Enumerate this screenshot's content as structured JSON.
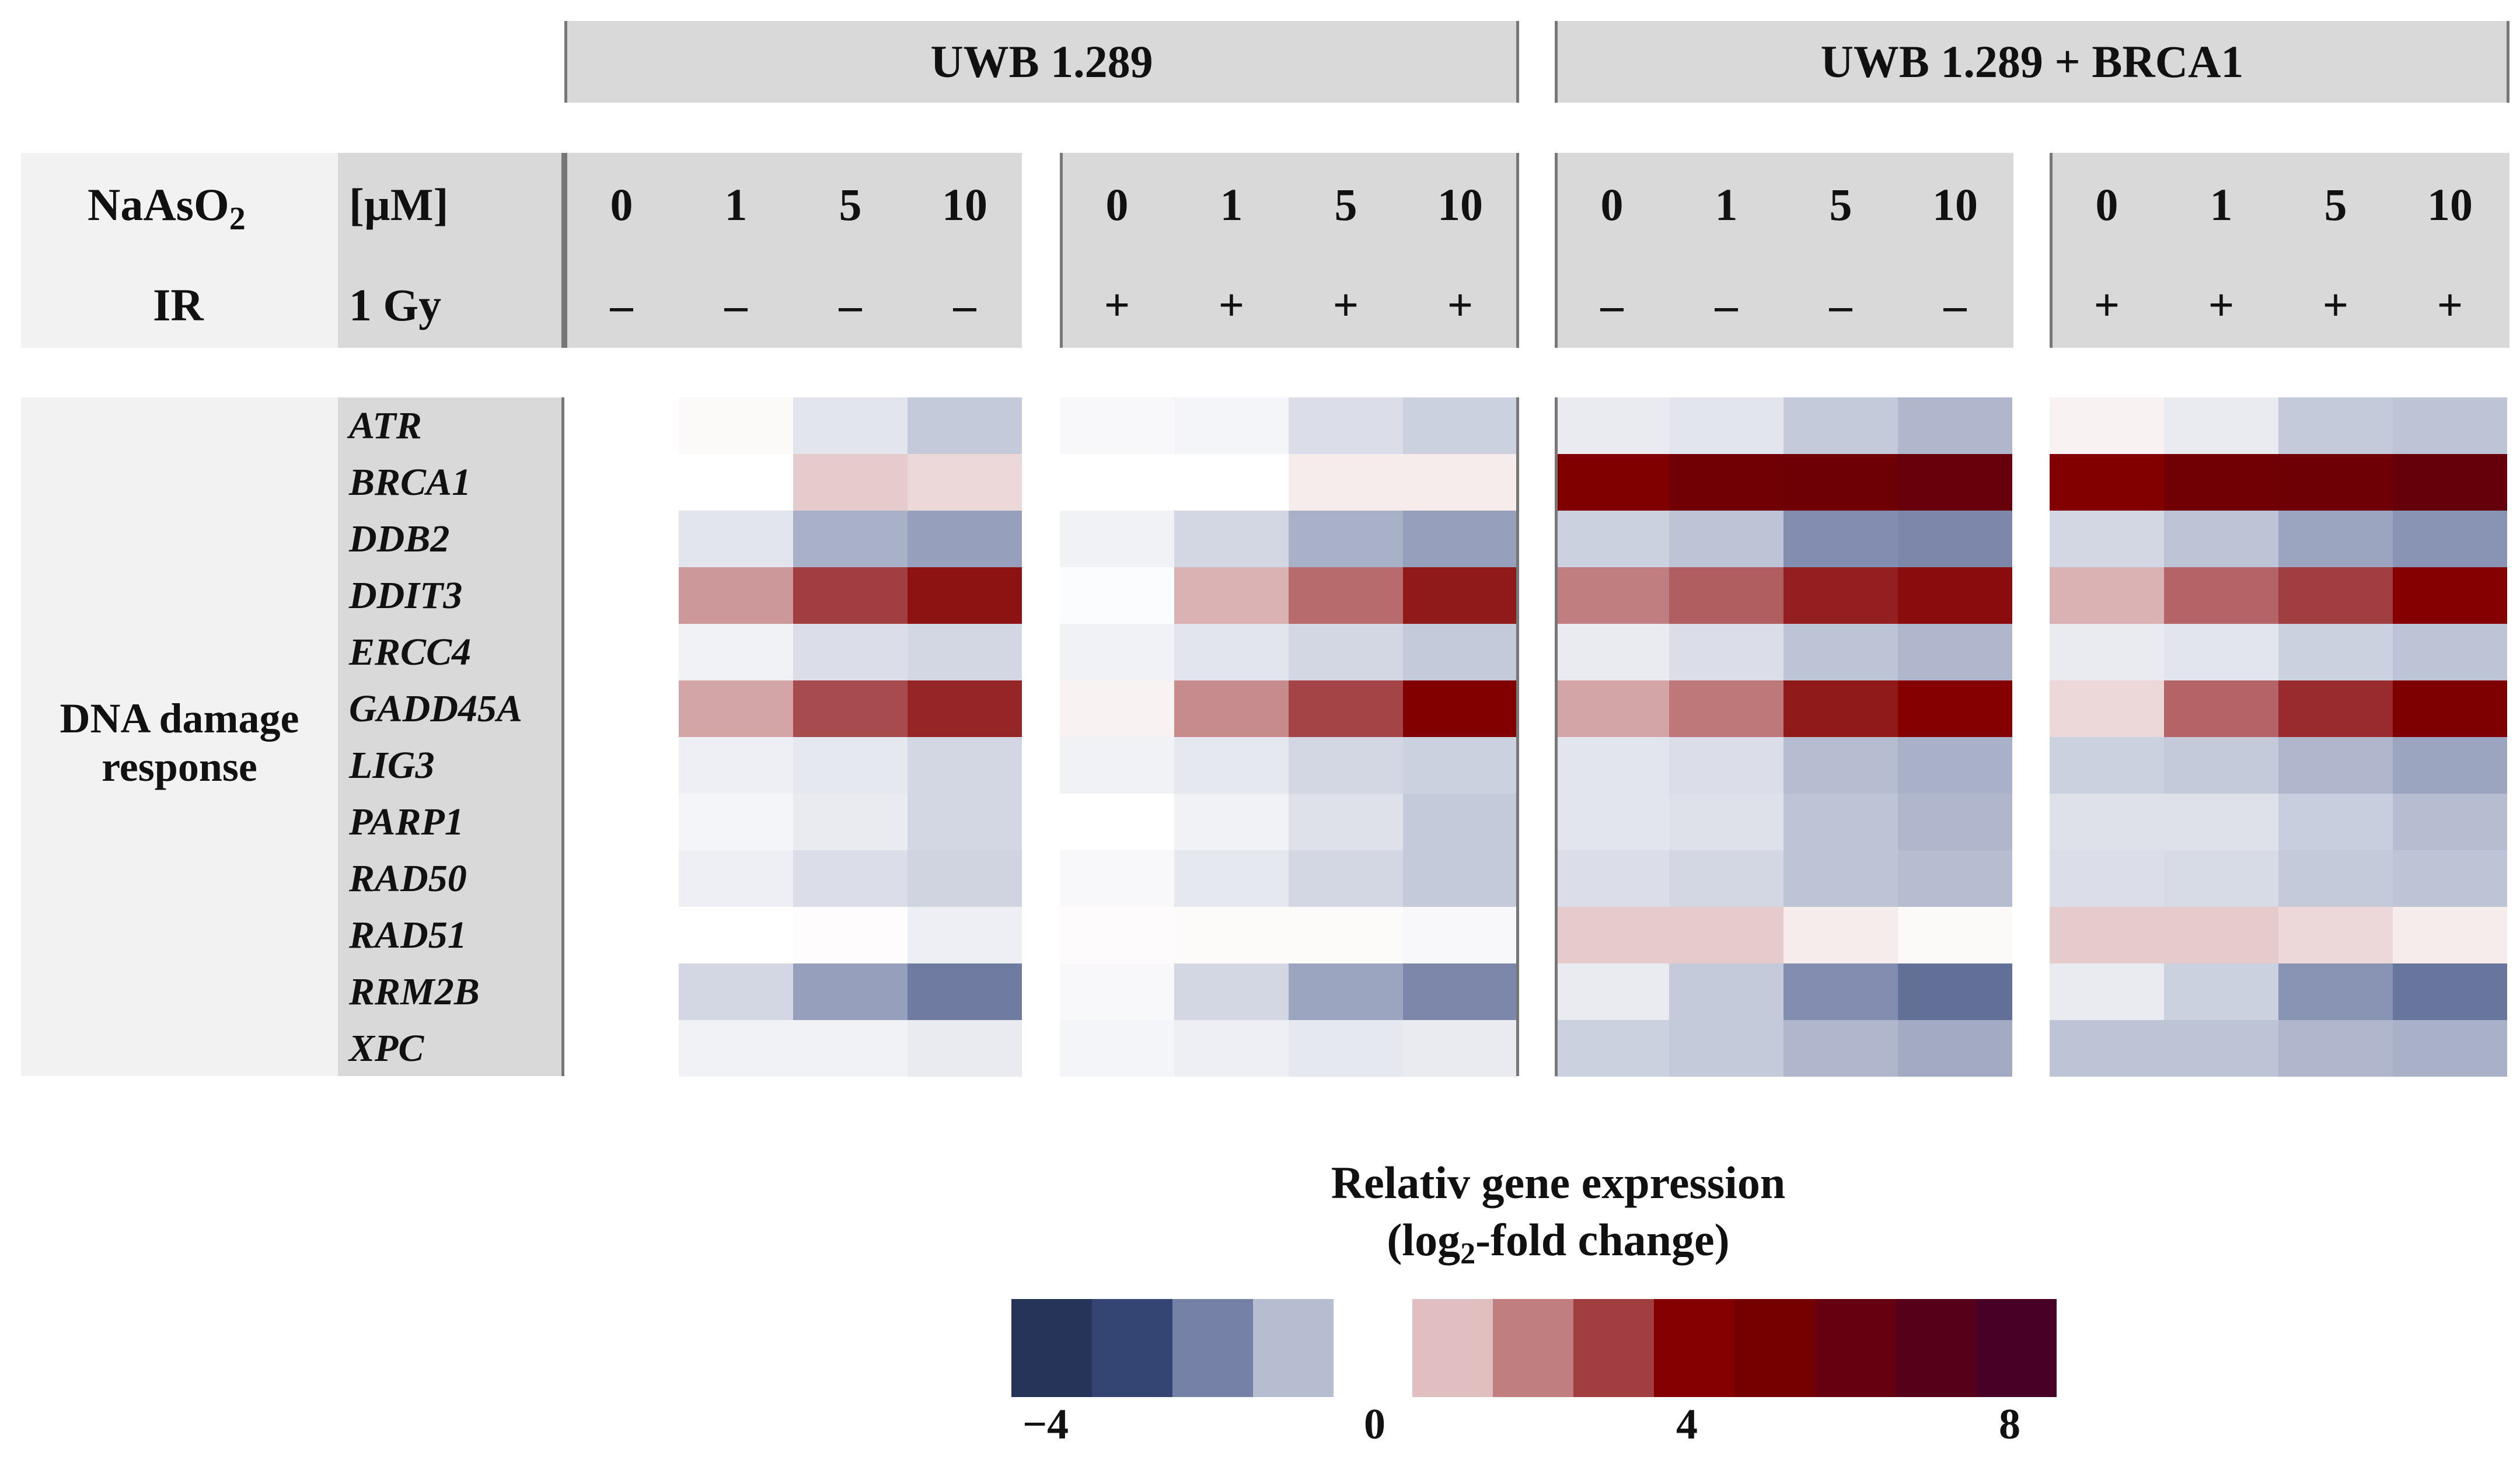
{
  "groups": [
    "UWB 1.289",
    "UWB 1.289 + BRCA1"
  ],
  "header": {
    "treatment_label": "NaAsO",
    "treatment_sub": "2",
    "treatment_unit": "[µM]",
    "ir_label": "IR",
    "ir_unit": "1 Gy",
    "doses": [
      "0",
      "1",
      "5",
      "10"
    ],
    "ir_signs": [
      "–",
      "+",
      "–",
      "+"
    ]
  },
  "category": {
    "line1": "DNA damage",
    "line2": "response"
  },
  "legend": {
    "title_line1": "Relativ gene expression",
    "title_line2_pre": "(log",
    "title_line2_sub": "2",
    "title_line2_post": "-fold change)",
    "ticks": [
      "−4",
      "0",
      "4",
      "8"
    ],
    "neg_colors": [
      "#263459",
      "#344574",
      "#7581a6",
      "#b6bdd1"
    ],
    "pos_colors": [
      "#e1bfc0",
      "#c17e80",
      "#a13e41",
      "#850000",
      "#750000",
      "#660011",
      "#57001a",
      "#480026"
    ]
  },
  "chart_data": {
    "type": "heatmap",
    "title": "Relativ gene expression (log2-fold change)",
    "color_scale": {
      "min": -4,
      "center": 0,
      "max": 8
    },
    "columns": [
      "UWB 1.289 | 0 µM | IR –",
      "UWB 1.289 | 1 µM | IR –",
      "UWB 1.289 | 5 µM | IR –",
      "UWB 1.289 | 10 µM | IR –",
      "UWB 1.289 | 0 µM | IR +",
      "UWB 1.289 | 1 µM | IR +",
      "UWB 1.289 | 5 µM | IR +",
      "UWB 1.289 | 10 µM | IR +",
      "UWB 1.289 + BRCA1 | 0 µM | IR –",
      "UWB 1.289 + BRCA1 | 1 µM | IR –",
      "UWB 1.289 + BRCA1 | 5 µM | IR –",
      "UWB 1.289 + BRCA1 | 10 µM | IR –",
      "UWB 1.289 + BRCA1 | 0 µM | IR +",
      "UWB 1.289 + BRCA1 | 1 µM | IR +",
      "UWB 1.289 + BRCA1 | 5 µM | IR +",
      "UWB 1.289 + BRCA1 | 10 µM | IR +"
    ],
    "rows": [
      "ATR",
      "BRCA1",
      "DDB2",
      "DDIT3",
      "ERCC4",
      "GADD45A",
      "LIG3",
      "PARP1",
      "RAD50",
      "RAD51",
      "RRM2B",
      "XPC"
    ],
    "values": [
      [
        0,
        0.05,
        -0.4,
        -0.8,
        -0.1,
        -0.15,
        -0.5,
        -0.7,
        -0.3,
        -0.4,
        -0.8,
        -1.1,
        0.1,
        -0.3,
        -0.8,
        -0.9
      ],
      [
        0,
        0,
        0.4,
        0.3,
        0,
        0,
        0.15,
        0.15,
        3.3,
        4.2,
        4.3,
        4.6,
        3.2,
        4.2,
        4.3,
        4.7
      ],
      [
        0,
        -0.4,
        -1.2,
        -1.5,
        -0.2,
        -0.6,
        -1.2,
        -1.5,
        -0.7,
        -0.9,
        -1.8,
        -1.9,
        -0.6,
        -0.9,
        -1.4,
        -1.7
      ],
      [
        0,
        0.8,
        2.0,
        2.7,
        -0.05,
        0.6,
        1.3,
        2.6,
        1.0,
        1.5,
        2.5,
        2.8,
        0.6,
        1.4,
        2.0,
        3.0
      ],
      [
        0,
        -0.2,
        -0.5,
        -0.6,
        -0.2,
        -0.4,
        -0.6,
        -0.8,
        -0.3,
        -0.5,
        -0.9,
        -1.1,
        -0.3,
        -0.4,
        -0.7,
        -0.9
      ],
      [
        0,
        0.7,
        1.8,
        2.4,
        0.1,
        0.9,
        1.9,
        3.1,
        0.7,
        1.1,
        2.6,
        3.0,
        0.3,
        1.4,
        2.3,
        3.4
      ],
      [
        0,
        -0.25,
        -0.35,
        -0.6,
        -0.2,
        -0.35,
        -0.6,
        -0.7,
        -0.4,
        -0.5,
        -1.0,
        -1.2,
        -0.7,
        -0.8,
        -1.1,
        -1.4
      ],
      [
        0,
        -0.15,
        -0.3,
        -0.6,
        0,
        -0.2,
        -0.45,
        -0.8,
        -0.4,
        -0.45,
        -0.9,
        -1.1,
        -0.45,
        -0.45,
        -0.75,
        -1.0
      ],
      [
        0,
        -0.25,
        -0.5,
        -0.65,
        -0.1,
        -0.35,
        -0.6,
        -0.8,
        -0.5,
        -0.6,
        -0.9,
        -1.0,
        -0.5,
        -0.55,
        -0.8,
        -0.9
      ],
      [
        0,
        0,
        0.02,
        -0.25,
        0.03,
        0.04,
        0.04,
        -0.1,
        0.4,
        0.4,
        0.15,
        0.05,
        0.4,
        0.4,
        0.3,
        0.15
      ],
      [
        0,
        -0.6,
        -1.5,
        -2.1,
        -0.1,
        -0.6,
        -1.4,
        -1.9,
        -0.3,
        -0.8,
        -1.8,
        -2.3,
        -0.3,
        -0.7,
        -1.7,
        -2.2
      ],
      [
        0,
        -0.2,
        -0.2,
        -0.3,
        -0.15,
        -0.25,
        -0.35,
        -0.3,
        -0.7,
        -0.8,
        -1.1,
        -1.3,
        -0.9,
        -0.9,
        -1.1,
        -1.2
      ]
    ]
  }
}
